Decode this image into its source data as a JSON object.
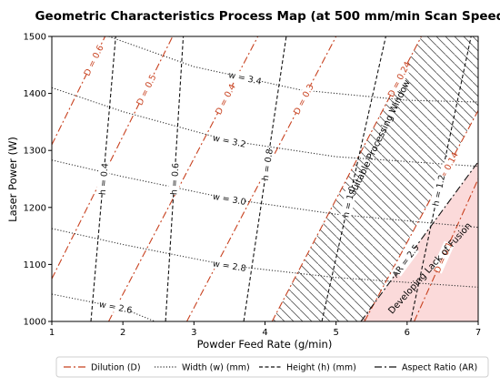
{
  "chart_data": {
    "type": "line",
    "title": "Geometric Characteristics Process Map (at 500 mm/min Scan Speed)",
    "xlabel": "Powder Feed Rate (g/min)",
    "ylabel": "Laser Power (W)",
    "xlim": [
      1,
      7
    ],
    "ylim": [
      1000,
      1500
    ],
    "xticks": [
      "1",
      "2",
      "3",
      "4",
      "5",
      "6",
      "7"
    ],
    "yticks": [
      "1000",
      "1100",
      "1200",
      "1300",
      "1400",
      "1500"
    ],
    "colors": {
      "dilution": "#c8411f",
      "width": "#333333",
      "height": "#111111",
      "aspect": "#111111",
      "lof_fill": "#fbdada"
    },
    "regions": {
      "window_label": "Suitable Processing Window",
      "lof_label": "Developing Lack of Fusion"
    },
    "dilution_lines": [
      {
        "label": "D = 0.6",
        "points": [
          [
            1.0,
            1310
          ],
          [
            1.75,
            1500
          ]
        ]
      },
      {
        "label": "D = 0.5",
        "points": [
          [
            1.0,
            1075
          ],
          [
            2.7,
            1500
          ]
        ]
      },
      {
        "label": "D = 0.4",
        "points": [
          [
            1.8,
            1000
          ],
          [
            3.9,
            1500
          ]
        ]
      },
      {
        "label": "D = 0.3",
        "points": [
          [
            2.9,
            1000
          ],
          [
            5.0,
            1500
          ]
        ]
      },
      {
        "label": "D = 0.24",
        "points": [
          [
            4.1,
            1000
          ],
          [
            6.2,
            1500
          ]
        ]
      },
      {
        "label": "D = 0.14",
        "points": [
          [
            5.4,
            1000
          ],
          [
            7.0,
            1370
          ]
        ]
      },
      {
        "label": "D = 0.1",
        "points": [
          [
            6.1,
            1000
          ],
          [
            7.0,
            1250
          ]
        ]
      }
    ],
    "width_lines": [
      {
        "label": "w = 3.4",
        "points": [
          [
            1.8,
            1500
          ],
          [
            3.0,
            1447
          ],
          [
            4.5,
            1406
          ],
          [
            6.0,
            1388
          ],
          [
            7.0,
            1385
          ]
        ]
      },
      {
        "label": "w = 3.2",
        "points": [
          [
            1.0,
            1410
          ],
          [
            2.0,
            1368
          ],
          [
            3.5,
            1317
          ],
          [
            5.0,
            1289
          ],
          [
            7.0,
            1272
          ]
        ]
      },
      {
        "label": "w = 3.0",
        "points": [
          [
            1.0,
            1283
          ],
          [
            2.0,
            1254
          ],
          [
            3.5,
            1215
          ],
          [
            5.0,
            1188
          ],
          [
            7.0,
            1165
          ]
        ]
      },
      {
        "label": "w = 2.8",
        "points": [
          [
            1.0,
            1163
          ],
          [
            2.0,
            1135
          ],
          [
            3.5,
            1098
          ],
          [
            5.0,
            1077
          ],
          [
            7.0,
            1060
          ]
        ]
      },
      {
        "label": "w = 2.6",
        "points": [
          [
            1.0,
            1048
          ],
          [
            2.0,
            1023
          ],
          [
            2.45,
            1000
          ]
        ]
      }
    ],
    "height_lines": [
      {
        "label": "h = 0.4",
        "points": [
          [
            1.55,
            1000
          ],
          [
            1.9,
            1500
          ]
        ]
      },
      {
        "label": "h = 0.6",
        "points": [
          [
            2.6,
            1000
          ],
          [
            2.85,
            1500
          ]
        ]
      },
      {
        "label": "h = 0.8",
        "points": [
          [
            3.7,
            1000
          ],
          [
            4.3,
            1500
          ]
        ]
      },
      {
        "label": "h = 1.0",
        "points": [
          [
            4.8,
            1000
          ],
          [
            5.7,
            1500
          ]
        ]
      },
      {
        "label": "h = 1.2",
        "points": [
          [
            6.05,
            1000
          ],
          [
            6.9,
            1500
          ]
        ]
      }
    ],
    "aspect_lines": [
      {
        "label": "AR = 2.5",
        "points": [
          [
            5.35,
            1000
          ],
          [
            7.0,
            1280
          ]
        ]
      }
    ],
    "legend": {
      "position": "bottom",
      "entries": [
        {
          "label": "Dilution (D)",
          "style": "dashdot",
          "key": "dilution"
        },
        {
          "label": "Width (w) (mm)",
          "style": "dotted",
          "key": "width"
        },
        {
          "label": "Height (h) (mm)",
          "style": "dashed",
          "key": "height"
        },
        {
          "label": "Aspect Ratio (AR)",
          "style": "dashdot",
          "key": "aspect"
        }
      ]
    }
  }
}
